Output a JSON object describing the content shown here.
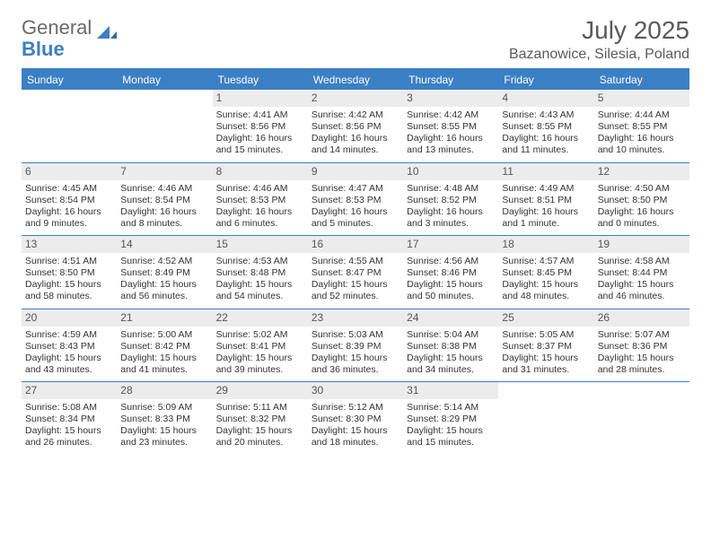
{
  "logo": {
    "text_general": "General",
    "text_blue": "Blue"
  },
  "title": "July 2025",
  "location": "Bazanowice, Silesia, Poland",
  "colors": {
    "accent": "#3b7fc4",
    "daynum_bg": "#ececec",
    "text": "#333333",
    "header_text": "#5a5a5a",
    "background": "#ffffff"
  },
  "day_headers": [
    "Sunday",
    "Monday",
    "Tuesday",
    "Wednesday",
    "Thursday",
    "Friday",
    "Saturday"
  ],
  "weeks": [
    [
      {
        "blank": true
      },
      {
        "blank": true
      },
      {
        "day": "1",
        "sunrise": "Sunrise: 4:41 AM",
        "sunset": "Sunset: 8:56 PM",
        "daylight1": "Daylight: 16 hours",
        "daylight2": "and 15 minutes."
      },
      {
        "day": "2",
        "sunrise": "Sunrise: 4:42 AM",
        "sunset": "Sunset: 8:56 PM",
        "daylight1": "Daylight: 16 hours",
        "daylight2": "and 14 minutes."
      },
      {
        "day": "3",
        "sunrise": "Sunrise: 4:42 AM",
        "sunset": "Sunset: 8:55 PM",
        "daylight1": "Daylight: 16 hours",
        "daylight2": "and 13 minutes."
      },
      {
        "day": "4",
        "sunrise": "Sunrise: 4:43 AM",
        "sunset": "Sunset: 8:55 PM",
        "daylight1": "Daylight: 16 hours",
        "daylight2": "and 11 minutes."
      },
      {
        "day": "5",
        "sunrise": "Sunrise: 4:44 AM",
        "sunset": "Sunset: 8:55 PM",
        "daylight1": "Daylight: 16 hours",
        "daylight2": "and 10 minutes."
      }
    ],
    [
      {
        "day": "6",
        "sunrise": "Sunrise: 4:45 AM",
        "sunset": "Sunset: 8:54 PM",
        "daylight1": "Daylight: 16 hours",
        "daylight2": "and 9 minutes."
      },
      {
        "day": "7",
        "sunrise": "Sunrise: 4:46 AM",
        "sunset": "Sunset: 8:54 PM",
        "daylight1": "Daylight: 16 hours",
        "daylight2": "and 8 minutes."
      },
      {
        "day": "8",
        "sunrise": "Sunrise: 4:46 AM",
        "sunset": "Sunset: 8:53 PM",
        "daylight1": "Daylight: 16 hours",
        "daylight2": "and 6 minutes."
      },
      {
        "day": "9",
        "sunrise": "Sunrise: 4:47 AM",
        "sunset": "Sunset: 8:53 PM",
        "daylight1": "Daylight: 16 hours",
        "daylight2": "and 5 minutes."
      },
      {
        "day": "10",
        "sunrise": "Sunrise: 4:48 AM",
        "sunset": "Sunset: 8:52 PM",
        "daylight1": "Daylight: 16 hours",
        "daylight2": "and 3 minutes."
      },
      {
        "day": "11",
        "sunrise": "Sunrise: 4:49 AM",
        "sunset": "Sunset: 8:51 PM",
        "daylight1": "Daylight: 16 hours",
        "daylight2": "and 1 minute."
      },
      {
        "day": "12",
        "sunrise": "Sunrise: 4:50 AM",
        "sunset": "Sunset: 8:50 PM",
        "daylight1": "Daylight: 16 hours",
        "daylight2": "and 0 minutes."
      }
    ],
    [
      {
        "day": "13",
        "sunrise": "Sunrise: 4:51 AM",
        "sunset": "Sunset: 8:50 PM",
        "daylight1": "Daylight: 15 hours",
        "daylight2": "and 58 minutes."
      },
      {
        "day": "14",
        "sunrise": "Sunrise: 4:52 AM",
        "sunset": "Sunset: 8:49 PM",
        "daylight1": "Daylight: 15 hours",
        "daylight2": "and 56 minutes."
      },
      {
        "day": "15",
        "sunrise": "Sunrise: 4:53 AM",
        "sunset": "Sunset: 8:48 PM",
        "daylight1": "Daylight: 15 hours",
        "daylight2": "and 54 minutes."
      },
      {
        "day": "16",
        "sunrise": "Sunrise: 4:55 AM",
        "sunset": "Sunset: 8:47 PM",
        "daylight1": "Daylight: 15 hours",
        "daylight2": "and 52 minutes."
      },
      {
        "day": "17",
        "sunrise": "Sunrise: 4:56 AM",
        "sunset": "Sunset: 8:46 PM",
        "daylight1": "Daylight: 15 hours",
        "daylight2": "and 50 minutes."
      },
      {
        "day": "18",
        "sunrise": "Sunrise: 4:57 AM",
        "sunset": "Sunset: 8:45 PM",
        "daylight1": "Daylight: 15 hours",
        "daylight2": "and 48 minutes."
      },
      {
        "day": "19",
        "sunrise": "Sunrise: 4:58 AM",
        "sunset": "Sunset: 8:44 PM",
        "daylight1": "Daylight: 15 hours",
        "daylight2": "and 46 minutes."
      }
    ],
    [
      {
        "day": "20",
        "sunrise": "Sunrise: 4:59 AM",
        "sunset": "Sunset: 8:43 PM",
        "daylight1": "Daylight: 15 hours",
        "daylight2": "and 43 minutes."
      },
      {
        "day": "21",
        "sunrise": "Sunrise: 5:00 AM",
        "sunset": "Sunset: 8:42 PM",
        "daylight1": "Daylight: 15 hours",
        "daylight2": "and 41 minutes."
      },
      {
        "day": "22",
        "sunrise": "Sunrise: 5:02 AM",
        "sunset": "Sunset: 8:41 PM",
        "daylight1": "Daylight: 15 hours",
        "daylight2": "and 39 minutes."
      },
      {
        "day": "23",
        "sunrise": "Sunrise: 5:03 AM",
        "sunset": "Sunset: 8:39 PM",
        "daylight1": "Daylight: 15 hours",
        "daylight2": "and 36 minutes."
      },
      {
        "day": "24",
        "sunrise": "Sunrise: 5:04 AM",
        "sunset": "Sunset: 8:38 PM",
        "daylight1": "Daylight: 15 hours",
        "daylight2": "and 34 minutes."
      },
      {
        "day": "25",
        "sunrise": "Sunrise: 5:05 AM",
        "sunset": "Sunset: 8:37 PM",
        "daylight1": "Daylight: 15 hours",
        "daylight2": "and 31 minutes."
      },
      {
        "day": "26",
        "sunrise": "Sunrise: 5:07 AM",
        "sunset": "Sunset: 8:36 PM",
        "daylight1": "Daylight: 15 hours",
        "daylight2": "and 28 minutes."
      }
    ],
    [
      {
        "day": "27",
        "sunrise": "Sunrise: 5:08 AM",
        "sunset": "Sunset: 8:34 PM",
        "daylight1": "Daylight: 15 hours",
        "daylight2": "and 26 minutes."
      },
      {
        "day": "28",
        "sunrise": "Sunrise: 5:09 AM",
        "sunset": "Sunset: 8:33 PM",
        "daylight1": "Daylight: 15 hours",
        "daylight2": "and 23 minutes."
      },
      {
        "day": "29",
        "sunrise": "Sunrise: 5:11 AM",
        "sunset": "Sunset: 8:32 PM",
        "daylight1": "Daylight: 15 hours",
        "daylight2": "and 20 minutes."
      },
      {
        "day": "30",
        "sunrise": "Sunrise: 5:12 AM",
        "sunset": "Sunset: 8:30 PM",
        "daylight1": "Daylight: 15 hours",
        "daylight2": "and 18 minutes."
      },
      {
        "day": "31",
        "sunrise": "Sunrise: 5:14 AM",
        "sunset": "Sunset: 8:29 PM",
        "daylight1": "Daylight: 15 hours",
        "daylight2": "and 15 minutes."
      },
      {
        "blank": true
      },
      {
        "blank": true
      }
    ]
  ]
}
